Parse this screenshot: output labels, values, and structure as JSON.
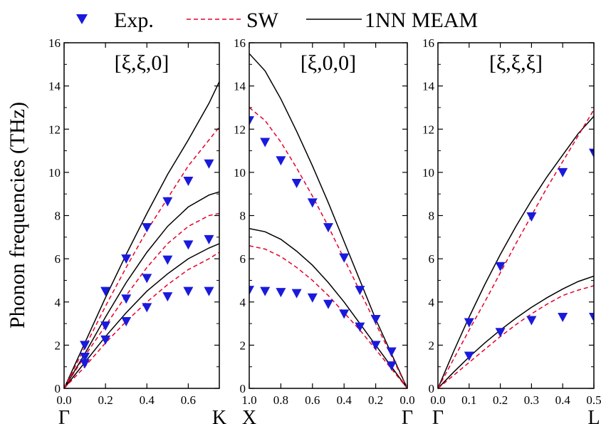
{
  "ylabel": "Phonon frequencies (THz)",
  "legend": {
    "placement": "top",
    "entries": [
      {
        "label": "Exp.",
        "style": "marker"
      },
      {
        "label": "SW",
        "style": "dashed"
      },
      {
        "label": "1NN MEAM",
        "style": "solid"
      }
    ]
  },
  "colors": {
    "exp": "#1a1adb",
    "sw": "#e4002b",
    "meam": "#000000",
    "axis": "#000000"
  },
  "chart_data": [
    {
      "type": "line",
      "title": "[ξ,ξ,0]",
      "xlim": [
        0,
        0.75
      ],
      "ylim": [
        0,
        16
      ],
      "x_ticks": [
        {
          "v": 0,
          "label": "0.0"
        },
        {
          "v": 0.2,
          "label": "0.2"
        },
        {
          "v": 0.4,
          "label": "0.4"
        },
        {
          "v": 0.6,
          "label": "0.6"
        }
      ],
      "y_ticks": [
        0,
        2,
        4,
        6,
        8,
        10,
        12,
        14,
        16
      ],
      "x_points": [
        {
          "v": 0,
          "label": "Γ"
        },
        {
          "v": 0.75,
          "label": "K"
        }
      ],
      "series": [
        {
          "kind": "meam",
          "points": [
            [
              0,
              0
            ],
            [
              0.1,
              2.1
            ],
            [
              0.2,
              4.2
            ],
            [
              0.3,
              6.2
            ],
            [
              0.4,
              8.1
            ],
            [
              0.5,
              9.9
            ],
            [
              0.6,
              11.5
            ],
            [
              0.7,
              13.2
            ],
            [
              0.75,
              14.2
            ]
          ]
        },
        {
          "kind": "meam",
          "points": [
            [
              0,
              0
            ],
            [
              0.1,
              1.6
            ],
            [
              0.2,
              3.3
            ],
            [
              0.3,
              4.9
            ],
            [
              0.4,
              6.3
            ],
            [
              0.5,
              7.5
            ],
            [
              0.6,
              8.4
            ],
            [
              0.7,
              8.95
            ],
            [
              0.75,
              9.1
            ]
          ]
        },
        {
          "kind": "meam",
          "points": [
            [
              0,
              0
            ],
            [
              0.1,
              1.2
            ],
            [
              0.2,
              2.4
            ],
            [
              0.3,
              3.5
            ],
            [
              0.4,
              4.5
            ],
            [
              0.5,
              5.3
            ],
            [
              0.6,
              6.0
            ],
            [
              0.7,
              6.5
            ],
            [
              0.75,
              6.7
            ]
          ]
        },
        {
          "kind": "sw",
          "points": [
            [
              0,
              0
            ],
            [
              0.1,
              1.9
            ],
            [
              0.2,
              3.8
            ],
            [
              0.3,
              5.6
            ],
            [
              0.4,
              7.3
            ],
            [
              0.5,
              8.8
            ],
            [
              0.6,
              10.3
            ],
            [
              0.7,
              11.5
            ],
            [
              0.75,
              12.1
            ]
          ]
        },
        {
          "kind": "sw",
          "points": [
            [
              0,
              0
            ],
            [
              0.1,
              1.5
            ],
            [
              0.2,
              2.9
            ],
            [
              0.3,
              4.3
            ],
            [
              0.4,
              5.6
            ],
            [
              0.5,
              6.7
            ],
            [
              0.6,
              7.5
            ],
            [
              0.7,
              8.0
            ],
            [
              0.75,
              8.1
            ]
          ]
        },
        {
          "kind": "sw",
          "points": [
            [
              0,
              0
            ],
            [
              0.1,
              1.0
            ],
            [
              0.2,
              2.1
            ],
            [
              0.3,
              3.1
            ],
            [
              0.4,
              4.0
            ],
            [
              0.5,
              4.8
            ],
            [
              0.6,
              5.5
            ],
            [
              0.7,
              6.0
            ],
            [
              0.75,
              6.3
            ]
          ]
        },
        {
          "kind": "exp",
          "points": [
            [
              0.1,
              2.0
            ],
            [
              0.2,
              4.5
            ],
            [
              0.3,
              6.0
            ],
            [
              0.4,
              7.45
            ],
            [
              0.5,
              8.65
            ],
            [
              0.6,
              9.6
            ],
            [
              0.7,
              10.4
            ],
            [
              0.1,
              1.45
            ],
            [
              0.2,
              2.9
            ],
            [
              0.3,
              4.15
            ],
            [
              0.4,
              5.1
            ],
            [
              0.5,
              5.95
            ],
            [
              0.6,
              6.65
            ],
            [
              0.7,
              6.9
            ],
            [
              0.1,
              1.15
            ],
            [
              0.2,
              2.25
            ],
            [
              0.3,
              3.1
            ],
            [
              0.4,
              3.75
            ],
            [
              0.5,
              4.25
            ],
            [
              0.6,
              4.5
            ],
            [
              0.7,
              4.5
            ]
          ]
        }
      ]
    },
    {
      "type": "line",
      "title": "[ξ,0,0]",
      "xlim": [
        1.0,
        0.0
      ],
      "ylim": [
        0,
        16
      ],
      "x_ticks": [
        {
          "v": 1.0,
          "label": "1.0"
        },
        {
          "v": 0.8,
          "label": "0.8"
        },
        {
          "v": 0.6,
          "label": "0.6"
        },
        {
          "v": 0.4,
          "label": "0.4"
        },
        {
          "v": 0.2,
          "label": "0.2"
        },
        {
          "v": 0.0,
          "label": "0.0"
        }
      ],
      "y_ticks": [
        0,
        2,
        4,
        6,
        8,
        10,
        12,
        14,
        16
      ],
      "x_points": [
        {
          "v": 1.0,
          "label": "X"
        },
        {
          "v": 0.0,
          "label": "Γ"
        }
      ],
      "series": [
        {
          "kind": "meam",
          "points": [
            [
              1.0,
              15.5
            ],
            [
              0.9,
              14.7
            ],
            [
              0.8,
              13.4
            ],
            [
              0.7,
              11.9
            ],
            [
              0.6,
              10.3
            ],
            [
              0.5,
              8.6
            ],
            [
              0.4,
              6.8
            ],
            [
              0.3,
              5.0
            ],
            [
              0.2,
              3.2
            ],
            [
              0.1,
              1.6
            ],
            [
              0.0,
              0
            ]
          ]
        },
        {
          "kind": "meam",
          "points": [
            [
              1.0,
              7.4
            ],
            [
              0.9,
              7.25
            ],
            [
              0.8,
              6.9
            ],
            [
              0.7,
              6.35
            ],
            [
              0.6,
              5.7
            ],
            [
              0.5,
              4.9
            ],
            [
              0.4,
              4.0
            ],
            [
              0.3,
              3.0
            ],
            [
              0.2,
              2.0
            ],
            [
              0.1,
              1.0
            ],
            [
              0.0,
              0
            ]
          ]
        },
        {
          "kind": "sw",
          "points": [
            [
              1.0,
              13.0
            ],
            [
              0.9,
              12.4
            ],
            [
              0.8,
              11.4
            ],
            [
              0.7,
              10.2
            ],
            [
              0.6,
              8.9
            ],
            [
              0.5,
              7.5
            ],
            [
              0.4,
              6.0
            ],
            [
              0.3,
              4.5
            ],
            [
              0.2,
              3.0
            ],
            [
              0.1,
              1.5
            ],
            [
              0.0,
              0
            ]
          ]
        },
        {
          "kind": "sw",
          "points": [
            [
              1.0,
              6.6
            ],
            [
              0.9,
              6.45
            ],
            [
              0.8,
              6.1
            ],
            [
              0.7,
              5.6
            ],
            [
              0.6,
              5.0
            ],
            [
              0.5,
              4.3
            ],
            [
              0.4,
              3.5
            ],
            [
              0.3,
              2.7
            ],
            [
              0.2,
              1.8
            ],
            [
              0.1,
              0.9
            ],
            [
              0.0,
              0
            ]
          ]
        },
        {
          "kind": "exp",
          "points": [
            [
              1.0,
              12.4
            ],
            [
              0.9,
              11.4
            ],
            [
              0.8,
              10.55
            ],
            [
              0.7,
              9.5
            ],
            [
              0.6,
              8.6
            ],
            [
              0.5,
              7.45
            ],
            [
              0.4,
              6.05
            ],
            [
              0.3,
              4.55
            ],
            [
              0.2,
              3.2
            ],
            [
              0.1,
              1.7
            ],
            [
              1.0,
              4.55
            ],
            [
              0.9,
              4.5
            ],
            [
              0.8,
              4.45
            ],
            [
              0.7,
              4.4
            ],
            [
              0.6,
              4.2
            ],
            [
              0.5,
              3.9
            ],
            [
              0.4,
              3.45
            ],
            [
              0.3,
              2.85
            ],
            [
              0.2,
              2.0
            ],
            [
              0.1,
              1.05
            ]
          ]
        }
      ]
    },
    {
      "type": "line",
      "title": "[ξ,ξ,ξ]",
      "xlim": [
        0,
        0.5
      ],
      "ylim": [
        0,
        16
      ],
      "x_ticks": [
        {
          "v": 0,
          "label": "0.0"
        },
        {
          "v": 0.1,
          "label": "0.1"
        },
        {
          "v": 0.2,
          "label": "0.2"
        },
        {
          "v": 0.3,
          "label": "0.3"
        },
        {
          "v": 0.4,
          "label": "0.4"
        },
        {
          "v": 0.5,
          "label": "0.5"
        }
      ],
      "y_ticks": [
        0,
        2,
        4,
        6,
        8,
        10,
        12,
        14,
        16
      ],
      "x_points": [
        {
          "v": 0,
          "label": "Γ"
        },
        {
          "v": 0.5,
          "label": "L"
        }
      ],
      "series": [
        {
          "kind": "meam",
          "points": [
            [
              0,
              0
            ],
            [
              0.05,
              1.7
            ],
            [
              0.1,
              3.3
            ],
            [
              0.15,
              4.8
            ],
            [
              0.2,
              6.2
            ],
            [
              0.25,
              7.5
            ],
            [
              0.3,
              8.7
            ],
            [
              0.35,
              9.8
            ],
            [
              0.4,
              10.8
            ],
            [
              0.45,
              11.8
            ],
            [
              0.5,
              12.6
            ]
          ]
        },
        {
          "kind": "meam",
          "points": [
            [
              0,
              0
            ],
            [
              0.05,
              0.75
            ],
            [
              0.1,
              1.45
            ],
            [
              0.15,
              2.1
            ],
            [
              0.2,
              2.7
            ],
            [
              0.25,
              3.25
            ],
            [
              0.3,
              3.75
            ],
            [
              0.35,
              4.2
            ],
            [
              0.4,
              4.6
            ],
            [
              0.45,
              4.95
            ],
            [
              0.5,
              5.2
            ]
          ]
        },
        {
          "kind": "sw",
          "points": [
            [
              0,
              0
            ],
            [
              0.05,
              1.35
            ],
            [
              0.1,
              2.7
            ],
            [
              0.15,
              4.0
            ],
            [
              0.2,
              5.35
            ],
            [
              0.25,
              6.7
            ],
            [
              0.3,
              8.0
            ],
            [
              0.35,
              9.3
            ],
            [
              0.4,
              10.5
            ],
            [
              0.45,
              11.7
            ],
            [
              0.5,
              12.9
            ]
          ]
        },
        {
          "kind": "sw",
          "points": [
            [
              0,
              0
            ],
            [
              0.05,
              0.6
            ],
            [
              0.1,
              1.2
            ],
            [
              0.15,
              1.8
            ],
            [
              0.2,
              2.4
            ],
            [
              0.25,
              2.95
            ],
            [
              0.3,
              3.45
            ],
            [
              0.35,
              3.9
            ],
            [
              0.4,
              4.3
            ],
            [
              0.45,
              4.55
            ],
            [
              0.5,
              4.75
            ]
          ]
        },
        {
          "kind": "exp",
          "points": [
            [
              0.1,
              3.05
            ],
            [
              0.2,
              5.65
            ],
            [
              0.3,
              7.95
            ],
            [
              0.4,
              10.0
            ],
            [
              0.5,
              10.9
            ],
            [
              0.1,
              1.5
            ],
            [
              0.2,
              2.6
            ],
            [
              0.3,
              3.15
            ],
            [
              0.4,
              3.3
            ],
            [
              0.5,
              3.3
            ]
          ]
        }
      ]
    }
  ]
}
